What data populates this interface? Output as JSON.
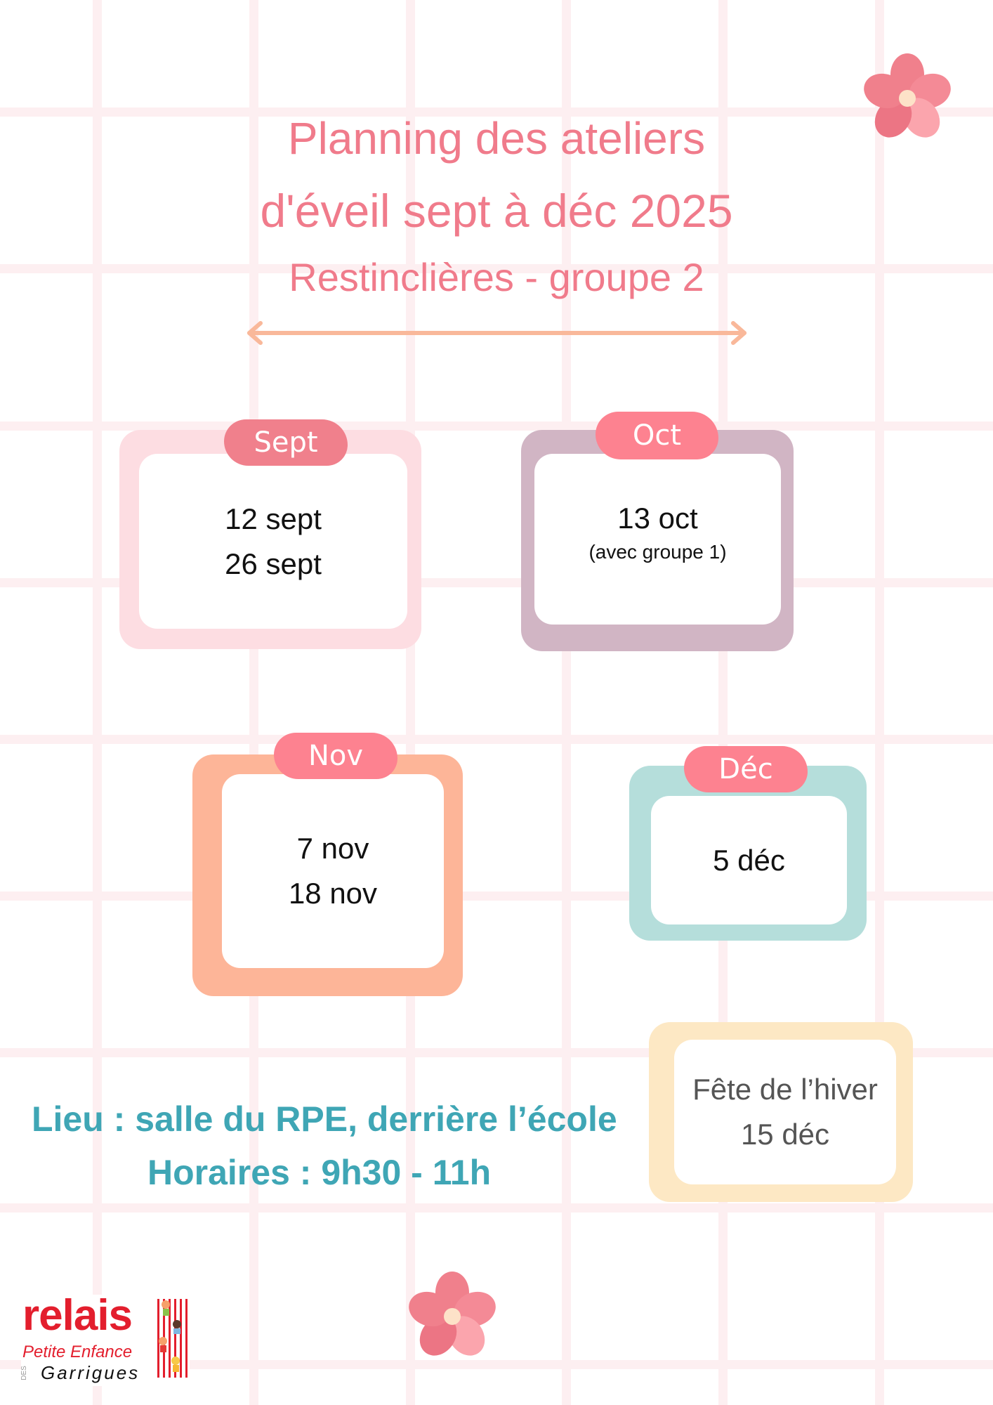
{
  "header": {
    "title_line1": "Planning des ateliers",
    "title_line2": "d'éveil sept à déc 2025",
    "subtitle": "Restinclières - groupe 2"
  },
  "months": [
    {
      "tab": "Sept",
      "dates": [
        "12 sept",
        "26 sept"
      ],
      "note": ""
    },
    {
      "tab": "Oct",
      "dates": [
        "13 oct"
      ],
      "note": "(avec groupe 1)"
    },
    {
      "tab": "Nov",
      "dates": [
        "7 nov",
        "18 nov"
      ],
      "note": ""
    },
    {
      "tab": "Déc",
      "dates": [
        "5 déc"
      ],
      "note": ""
    }
  ],
  "event": {
    "line1": "Fête de l’hiver",
    "line2": "15 déc"
  },
  "info": {
    "lieu": "Lieu : salle du RPE, derrière l’école",
    "horaires": "Horaires : 9h30 - 11h"
  },
  "logo": {
    "line1": "relais",
    "line2": "Petite Enfance",
    "prefix": "DES",
    "line3": "Garrigues"
  },
  "colors": {
    "title": "#f07b8b",
    "info": "#3fa6b5",
    "arrow": "#f9b89a",
    "sept": "#fddde2",
    "oct": "#d1b5c4",
    "nov": "#fdb598",
    "dec": "#b5dedb",
    "event": "#fde8c4"
  }
}
